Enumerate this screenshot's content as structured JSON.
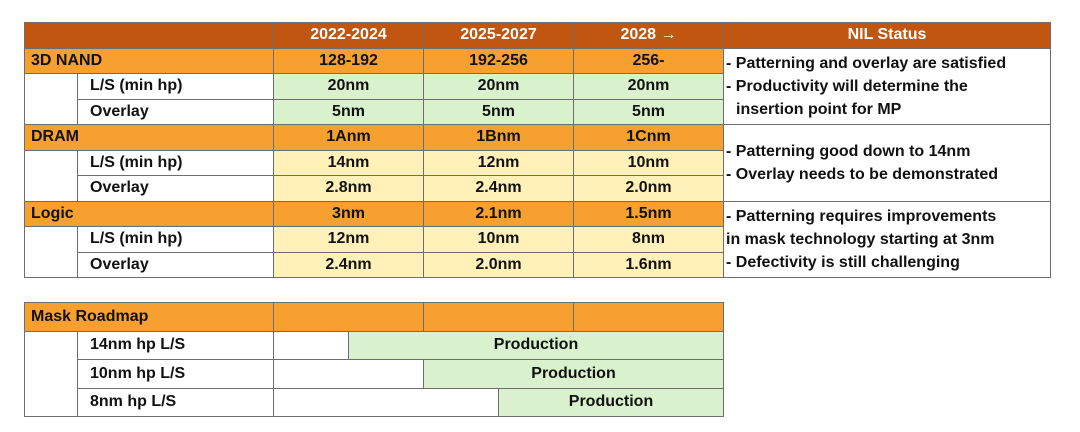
{
  "roadmap": {
    "headers": [
      "2022-2024",
      "2025-2027",
      "2028 →",
      "NIL Status"
    ],
    "groups": [
      {
        "name": "3D NAND",
        "values": [
          "128-192",
          "192-256",
          "256-"
        ],
        "rows": [
          {
            "label": "L/S (min hp)",
            "values": [
              "20nm",
              "20nm",
              "20nm"
            ]
          },
          {
            "label": "Overlay",
            "values": [
              "5nm",
              "5nm",
              "5nm"
            ]
          }
        ],
        "status": [
          "- Patterning and overlay are satisfied",
          "- Productivity will determine the",
          "  insertion point for MP"
        ]
      },
      {
        "name": "DRAM",
        "values": [
          "1Anm",
          "1Bnm",
          "1Cnm"
        ],
        "rows": [
          {
            "label": "L/S (min hp)",
            "values": [
              "14nm",
              "12nm",
              "10nm"
            ]
          },
          {
            "label": "Overlay",
            "values": [
              "2.8nm",
              "2.4nm",
              "2.0nm"
            ]
          }
        ],
        "status": [
          "- Patterning  good down to 14nm",
          "- Overlay  needs to be demonstrated"
        ]
      },
      {
        "name": "Logic",
        "values": [
          "3nm",
          "2.1nm",
          "1.5nm"
        ],
        "rows": [
          {
            "label": "L/S (min hp)",
            "values": [
              "12nm",
              "10nm",
              "8nm"
            ]
          },
          {
            "label": "Overlay",
            "values": [
              "2.4nm",
              "2.0nm",
              "1.6nm"
            ]
          }
        ],
        "status": [
          "- Patterning requires improvements",
          "in mask technology starting at 3nm",
          "- Defectivity  is still challenging"
        ]
      }
    ]
  },
  "mask": {
    "title": "Mask Roadmap",
    "rows": [
      {
        "label": "14nm hp L/S",
        "status": "Production"
      },
      {
        "label": "10nm hp L/S",
        "status": "Production"
      },
      {
        "label": "8nm hp L/S",
        "status": "Production"
      }
    ]
  },
  "colors": {
    "header": "#c0560f",
    "category": "#f6a02f",
    "green": "#d9f1cd",
    "yellow": "#fff1b8"
  }
}
